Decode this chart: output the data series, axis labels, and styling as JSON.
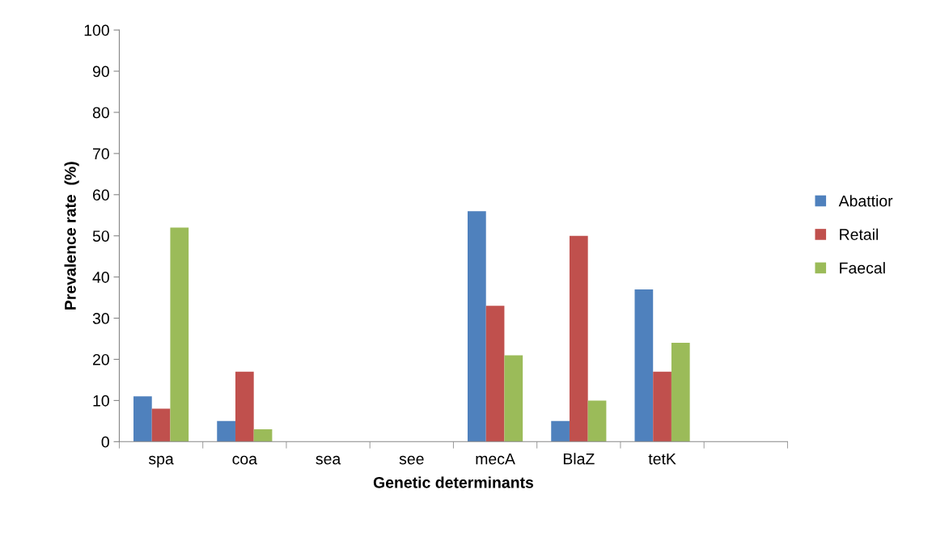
{
  "chart_data": {
    "type": "bar",
    "xlabel": "Genetic determinants",
    "ylabel": "Prevalence rate  (%)",
    "categories": [
      "spa",
      "coa",
      "sea",
      "see",
      "mecA",
      "BlaZ",
      "tetK",
      null
    ],
    "series": [
      {
        "name": "Abattior",
        "color": "#4f81bd",
        "values": [
          11,
          5,
          0,
          0,
          56,
          5,
          37,
          null
        ]
      },
      {
        "name": "Retail",
        "color": "#c0504d",
        "values": [
          8,
          17,
          0,
          0,
          33,
          50,
          17,
          null
        ]
      },
      {
        "name": "Faecal",
        "color": "#9bbb59",
        "values": [
          52,
          3,
          0,
          0,
          21,
          10,
          24,
          null
        ]
      }
    ],
    "ylim": [
      0,
      100
    ],
    "yticks": [
      0,
      10,
      20,
      30,
      40,
      50,
      60,
      70,
      80,
      90,
      100
    ],
    "grid": false,
    "legend": "right"
  }
}
